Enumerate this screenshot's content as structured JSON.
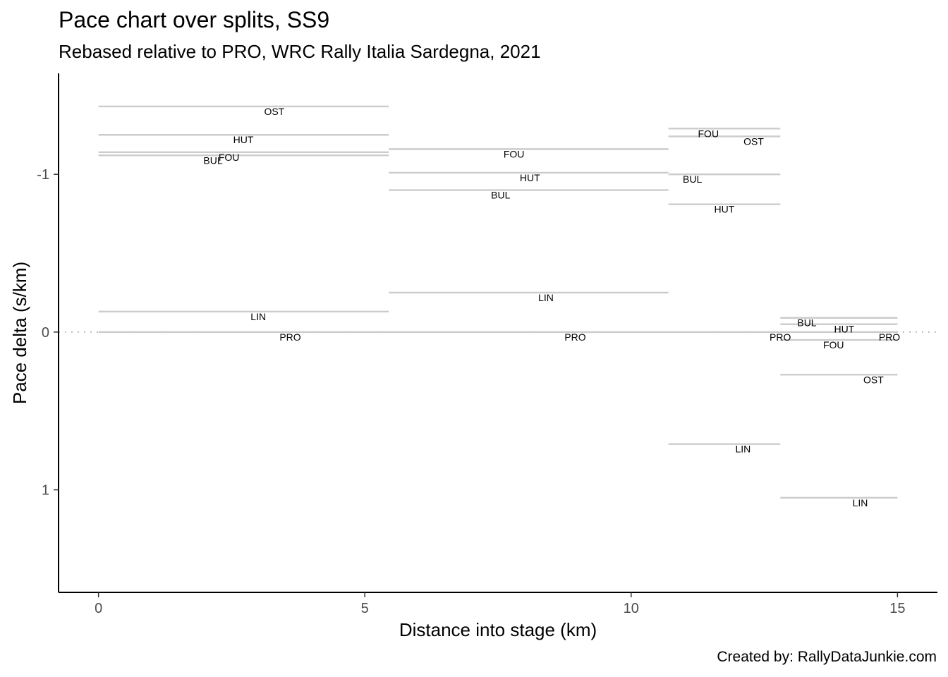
{
  "chart_data": {
    "type": "line",
    "title": "Pace chart over splits, SS9",
    "subtitle": "Rebased relative to PRO, WRC Rally Italia Sardegna, 2021",
    "caption": "Created by: RallyDataJunkie.com",
    "xlabel": "Distance into stage (km)",
    "ylabel": "Pace delta (s/km)",
    "xlim": [
      -0.75,
      15.75
    ],
    "ylim": [
      1.65,
      -1.64
    ],
    "y_reversed": true,
    "grid": false,
    "xticks": [
      {
        "value": 0,
        "label": "0"
      },
      {
        "value": 5,
        "label": "5"
      },
      {
        "value": 10,
        "label": "10"
      },
      {
        "value": 15,
        "label": "15"
      }
    ],
    "yticks": [
      {
        "value": -1,
        "label": "-1"
      },
      {
        "value": 0,
        "label": "0"
      },
      {
        "value": 1,
        "label": "1"
      }
    ],
    "reference_line": {
      "y": 0,
      "style": "dotted"
    },
    "line_color": "#cccccc",
    "segments": [
      {
        "driver": "OST",
        "x_start": 0,
        "x_end": 5.45,
        "y": -1.43,
        "label_x": 3.3
      },
      {
        "driver": "HUT",
        "x_start": 0,
        "x_end": 5.45,
        "y": -1.25,
        "label_x": 2.72
      },
      {
        "driver": "FOU",
        "x_start": 0,
        "x_end": 5.45,
        "y": -1.14,
        "label_x": 2.45
      },
      {
        "driver": "BUL",
        "x_start": 0,
        "x_end": 5.45,
        "y": -1.12,
        "label_x": 2.15
      },
      {
        "driver": "LIN",
        "x_start": 0,
        "x_end": 5.45,
        "y": -0.13,
        "label_x": 3.0
      },
      {
        "driver": "PRO",
        "x_start": 0,
        "x_end": 5.45,
        "y": 0.0,
        "label_x": 3.6
      },
      {
        "driver": "FOU",
        "x_start": 5.45,
        "x_end": 10.7,
        "y": -1.16,
        "label_x": 7.8
      },
      {
        "driver": "HUT",
        "x_start": 5.45,
        "x_end": 10.7,
        "y": -1.01,
        "label_x": 8.1
      },
      {
        "driver": "BUL",
        "x_start": 5.45,
        "x_end": 10.7,
        "y": -0.9,
        "label_x": 7.55
      },
      {
        "driver": "LIN",
        "x_start": 5.45,
        "x_end": 10.7,
        "y": -0.25,
        "label_x": 8.4
      },
      {
        "driver": "PRO",
        "x_start": 5.45,
        "x_end": 10.7,
        "y": 0.0,
        "label_x": 8.95
      },
      {
        "driver": "FOU",
        "x_start": 10.7,
        "x_end": 12.8,
        "y": -1.29,
        "label_x": 11.45
      },
      {
        "driver": "OST",
        "x_start": 10.7,
        "x_end": 12.8,
        "y": -1.24,
        "label_x": 12.3
      },
      {
        "driver": "BUL",
        "x_start": 10.7,
        "x_end": 12.8,
        "y": -1.0,
        "label_x": 11.15
      },
      {
        "driver": "HUT",
        "x_start": 10.7,
        "x_end": 12.8,
        "y": -0.81,
        "label_x": 11.75
      },
      {
        "driver": "LIN",
        "x_start": 10.7,
        "x_end": 12.8,
        "y": 0.71,
        "label_x": 12.1
      },
      {
        "driver": "PRO",
        "x_start": 10.7,
        "x_end": 12.8,
        "y": 0.0,
        "label_x": 12.8
      },
      {
        "driver": "BUL",
        "x_start": 12.8,
        "x_end": 15.0,
        "y": -0.09,
        "label_x": 13.3
      },
      {
        "driver": "HUT",
        "x_start": 12.8,
        "x_end": 15.0,
        "y": -0.05,
        "label_x": 14.0
      },
      {
        "driver": "PRO",
        "x_start": 12.8,
        "x_end": 15.0,
        "y": 0.0,
        "label_x": 14.85
      },
      {
        "driver": "FOU",
        "x_start": 12.8,
        "x_end": 15.0,
        "y": 0.05,
        "label_x": 13.8
      },
      {
        "driver": "OST",
        "x_start": 12.8,
        "x_end": 15.0,
        "y": 0.27,
        "label_x": 14.55
      },
      {
        "driver": "LIN",
        "x_start": 12.8,
        "x_end": 15.0,
        "y": 1.05,
        "label_x": 14.3
      }
    ]
  }
}
